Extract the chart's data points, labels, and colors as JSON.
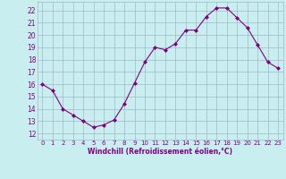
{
  "x": [
    0,
    1,
    2,
    3,
    4,
    5,
    6,
    7,
    8,
    9,
    10,
    11,
    12,
    13,
    14,
    15,
    16,
    17,
    18,
    19,
    20,
    21,
    22,
    23
  ],
  "y": [
    16.0,
    15.5,
    14.0,
    13.5,
    13.0,
    12.5,
    12.7,
    13.1,
    14.4,
    16.1,
    17.8,
    19.0,
    18.8,
    19.3,
    20.4,
    20.4,
    21.5,
    22.2,
    22.2,
    21.4,
    20.6,
    19.2,
    17.8,
    17.3
  ],
  "line_color": "#800080",
  "marker": "D",
  "marker_size": 2,
  "bg_color": "#c8eef0",
  "grid_color": "#a0b8c8",
  "xlabel": "Windchill (Refroidissement éolien,°C)",
  "yticks": [
    12,
    13,
    14,
    15,
    16,
    17,
    18,
    19,
    20,
    21,
    22
  ],
  "ylim": [
    11.5,
    22.7
  ],
  "xlim": [
    -0.5,
    23.5
  ],
  "xtick_fontsize": 5.0,
  "ytick_fontsize": 5.5,
  "xlabel_fontsize": 5.5
}
